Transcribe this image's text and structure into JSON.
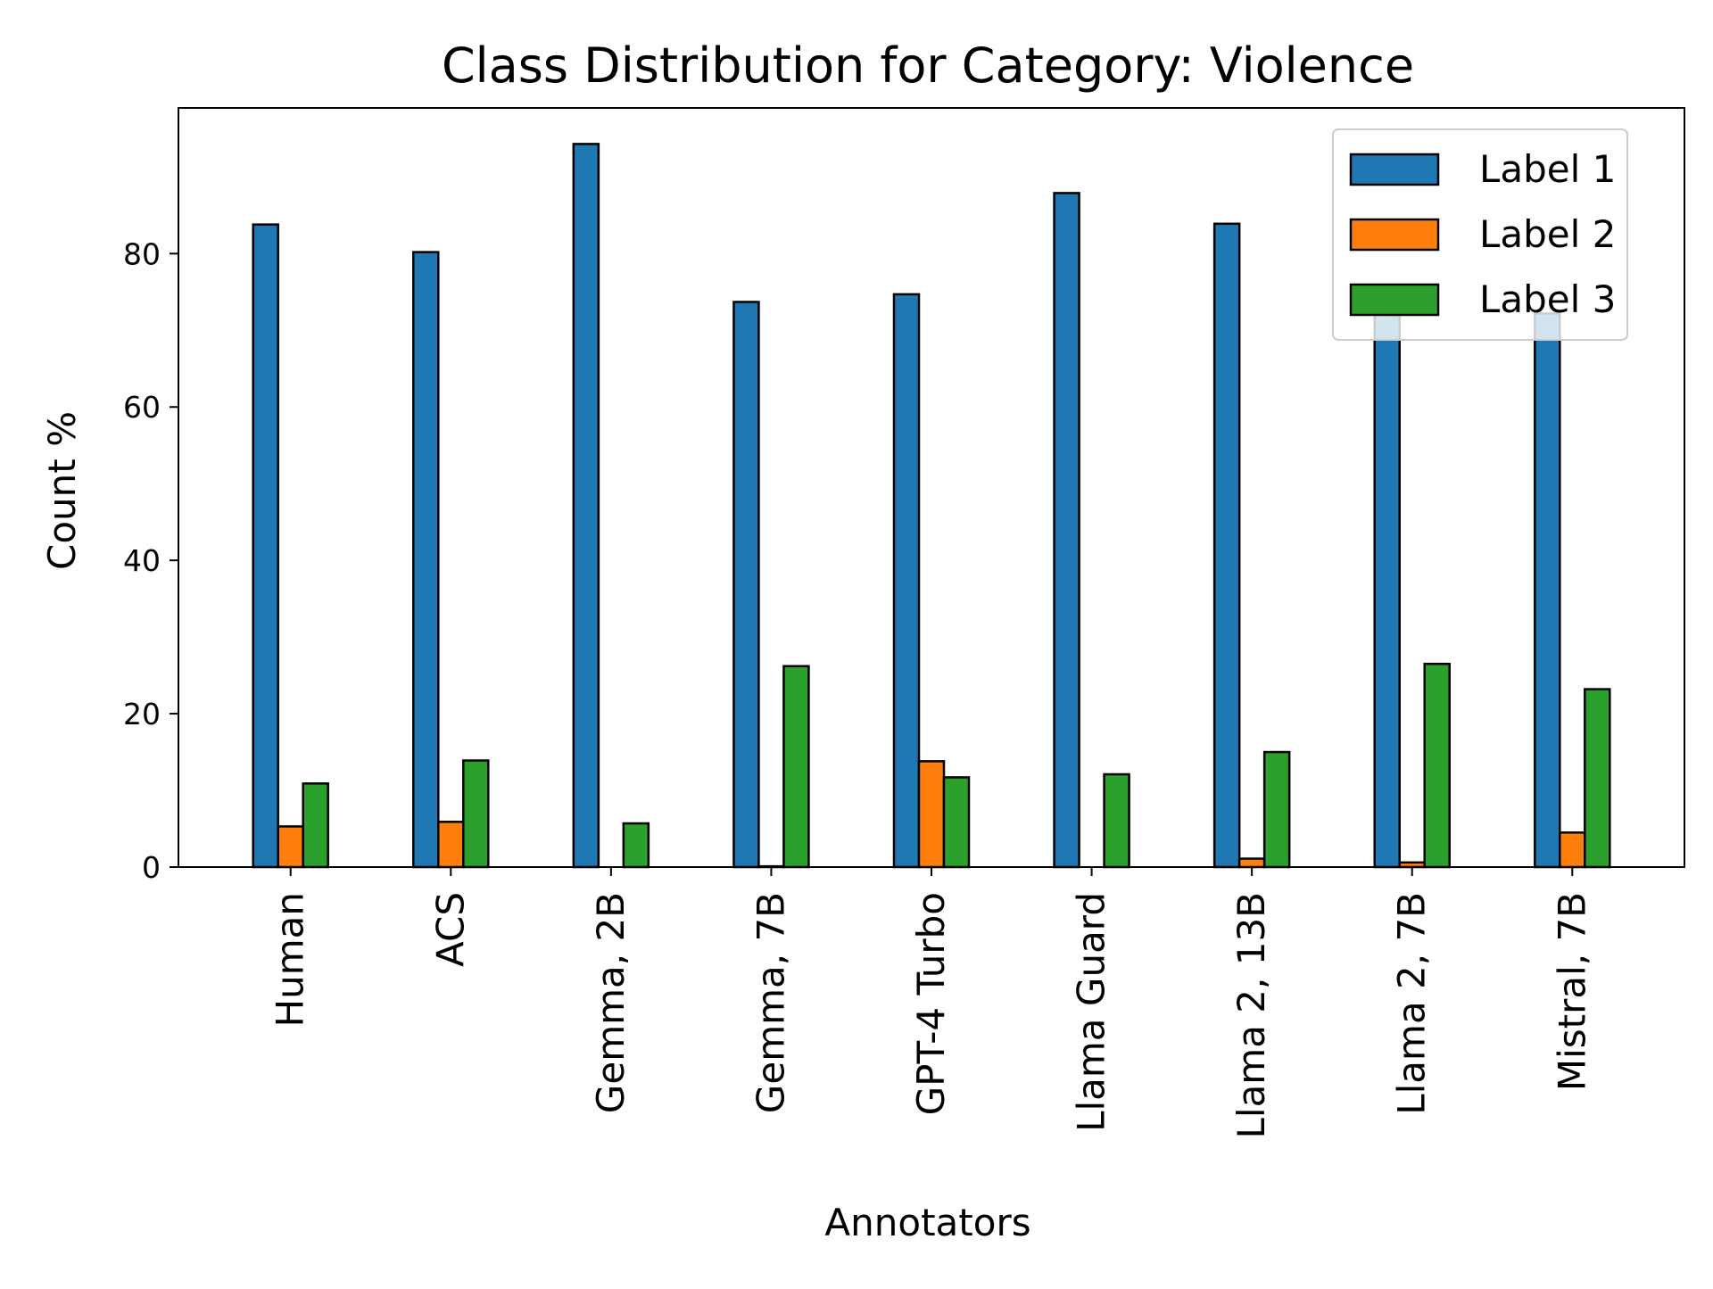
{
  "chart_data": {
    "type": "bar",
    "title": "Class Distribution for Category: Violence",
    "xlabel": "Annotators",
    "ylabel": "Count %",
    "categories": [
      "Human",
      "ACS",
      "Gemma, 2B",
      "Gemma, 7B",
      "GPT-4 Turbo",
      "Llama Guard",
      "Llama 2, 13B",
      "Llama 2, 7B",
      "Mistral, 7B"
    ],
    "series": [
      {
        "name": "Label 1",
        "color": "#1f77b4",
        "values": [
          83.8,
          80.2,
          94.3,
          73.7,
          74.7,
          87.9,
          83.9,
          72.8,
          72.2
        ]
      },
      {
        "name": "Label 2",
        "color": "#ff7f0e",
        "values": [
          5.3,
          5.9,
          0.0,
          0.1,
          13.8,
          0.0,
          1.1,
          0.6,
          4.5
        ]
      },
      {
        "name": "Label 3",
        "color": "#2ca02c",
        "values": [
          10.9,
          13.9,
          5.7,
          26.2,
          11.7,
          12.1,
          15.0,
          26.5,
          23.2
        ]
      }
    ],
    "yticks": [
      0,
      20,
      40,
      60,
      80
    ],
    "ylim": [
      0,
      99
    ],
    "grid": false,
    "legend_position": "top-right"
  }
}
